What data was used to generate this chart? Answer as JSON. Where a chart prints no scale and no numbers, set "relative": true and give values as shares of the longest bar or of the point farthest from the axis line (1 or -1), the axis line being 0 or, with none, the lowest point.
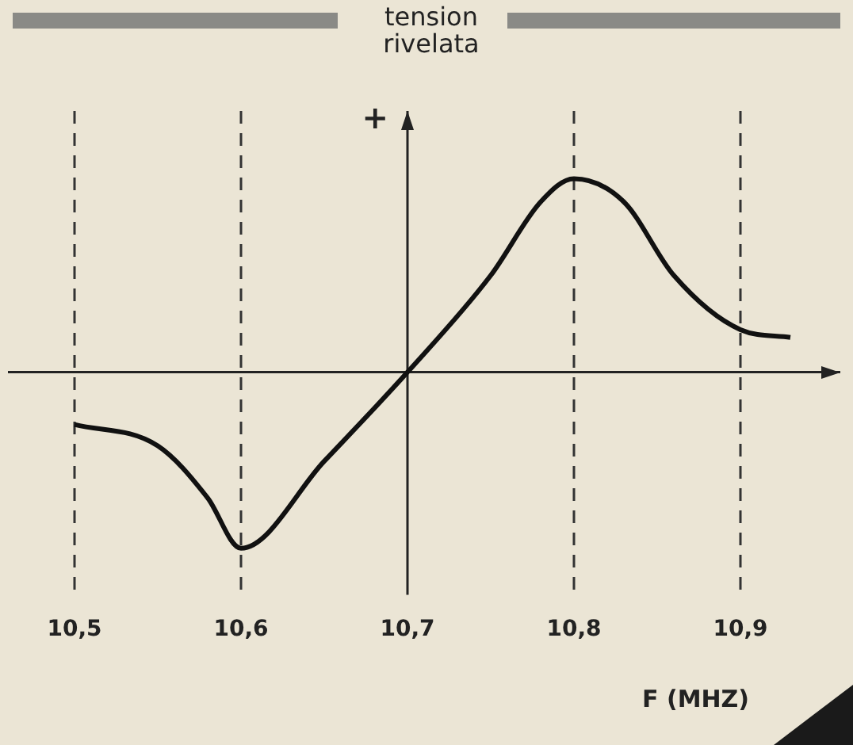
{
  "chart_data": {
    "type": "line",
    "relative": true,
    "ylabel": "tension rivelata",
    "xlabel": "F (MHZ)",
    "annotations": [
      "+"
    ],
    "x": [
      10.5,
      10.55,
      10.58,
      10.6,
      10.65,
      10.7,
      10.75,
      10.78,
      10.8,
      10.83,
      10.86,
      10.9,
      10.93
    ],
    "series": [
      {
        "color": "#111111",
        "values": [
          -0.27,
          -0.38,
          -0.65,
          -0.91,
          -0.46,
          0,
          0.5,
          0.88,
          1,
          0.88,
          0.5,
          0.22,
          0.18
        ]
      }
    ],
    "xlim": [
      10.46,
      10.96
    ],
    "xticks": [
      {
        "value": 10.5,
        "label": "10,5"
      },
      {
        "value": 10.6,
        "label": "10,6"
      },
      {
        "value": 10.7,
        "label": "10,7"
      },
      {
        "value": 10.8,
        "label": "10,8"
      },
      {
        "value": 10.9,
        "label": "10,9"
      }
    ],
    "ref_lines": [
      {
        "axis": "x",
        "value": 10.7,
        "line_style": "solid",
        "color": "#222222"
      },
      {
        "axis": "x",
        "value": 10.5,
        "line_style": "dashed"
      },
      {
        "axis": "x",
        "value": 10.6,
        "line_style": "dashed"
      },
      {
        "axis": "x",
        "value": 10.8,
        "line_style": "dashed"
      },
      {
        "axis": "x",
        "value": 10.9,
        "line_style": "dashed"
      }
    ],
    "grid": false,
    "legend": false
  }
}
